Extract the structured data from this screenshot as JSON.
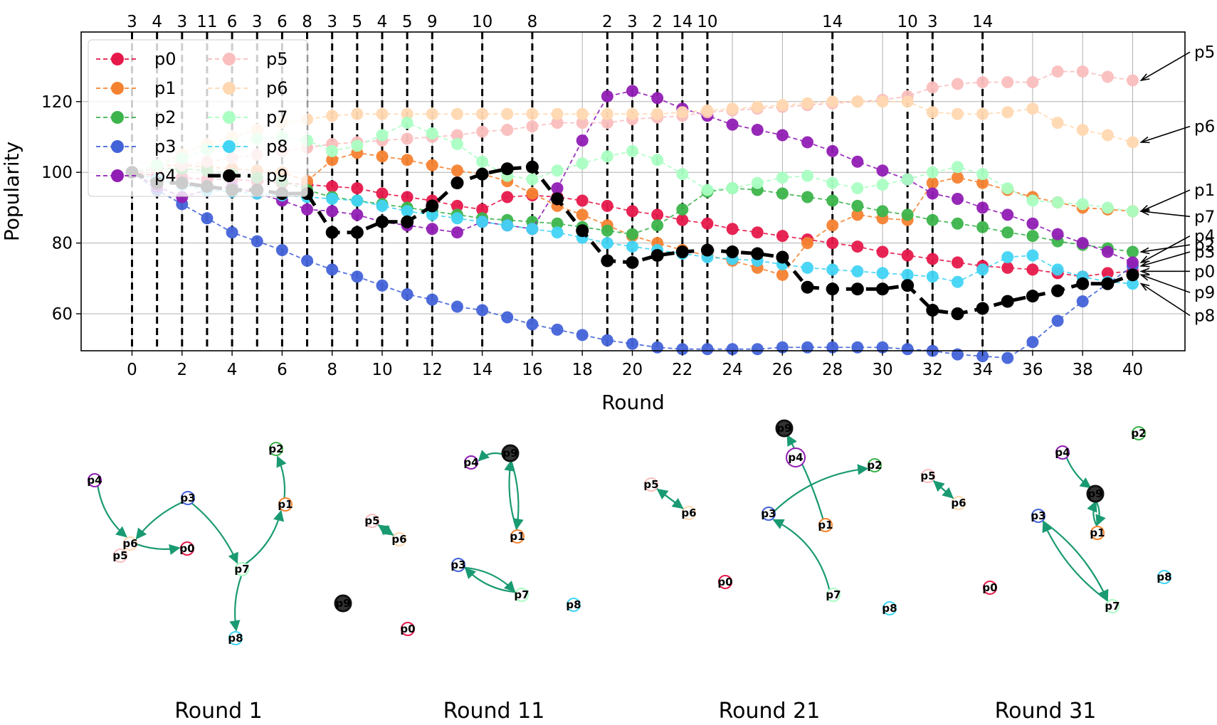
{
  "chart_data": [
    {
      "type": "line",
      "xlabel": "Round",
      "ylabel": "Popularity",
      "xlim": [
        -2,
        42
      ],
      "ylim": [
        43,
        134
      ],
      "xticks": [
        0,
        2,
        4,
        6,
        8,
        10,
        12,
        14,
        16,
        18,
        20,
        22,
        24,
        26,
        28,
        30,
        32,
        34,
        36,
        38,
        40
      ],
      "yticks": [
        60,
        80,
        100,
        120
      ],
      "grid": true,
      "legend": {
        "position": "upper-left",
        "columns": 2
      },
      "series": [
        {
          "name": "p0",
          "color": "#e6194b",
          "values": [
            100,
            99,
            98.5,
            98,
            98,
            97.5,
            97,
            96.5,
            96,
            95.5,
            94,
            93,
            92,
            90.5,
            89.5,
            93,
            93.5,
            93,
            92,
            90.5,
            89,
            88,
            86.5,
            85.5,
            84,
            83,
            82,
            81,
            80,
            79,
            77.5,
            76.5,
            75.5,
            74.5,
            73.5,
            73,
            72.5,
            71.5,
            70.5,
            71.5,
            72
          ]
        },
        {
          "name": "p1",
          "color": "#f58231",
          "values": [
            100,
            102,
            102,
            101.5,
            101,
            100.5,
            100,
            97.5,
            103.5,
            105.5,
            104.5,
            103.5,
            102,
            100.5,
            99.5,
            97.5,
            94,
            90.5,
            88,
            85,
            82,
            80,
            78,
            76.5,
            75,
            73,
            71,
            80,
            85,
            88,
            87,
            86.5,
            97,
            98.5,
            97,
            95,
            93,
            91.5,
            90,
            89.5,
            89
          ]
        },
        {
          "name": "p2",
          "color": "#3cb44b",
          "values": [
            100,
            101,
            101,
            100.5,
            99.5,
            98.5,
            97.5,
            95,
            93,
            92,
            91,
            90,
            89,
            88,
            87,
            86.5,
            86,
            85.5,
            84.5,
            83.5,
            82.5,
            85,
            89.5,
            94.5,
            95.5,
            95,
            94,
            93,
            92,
            90.5,
            89,
            88,
            86.5,
            85.5,
            84.5,
            83,
            82,
            80.5,
            79.5,
            78.5,
            77.5
          ]
        },
        {
          "name": "p3",
          "color": "#4363d8",
          "values": [
            100,
            95,
            91,
            87,
            83,
            80.5,
            78,
            75,
            72.5,
            70.5,
            68,
            65.5,
            64,
            62,
            61,
            59,
            57,
            55.5,
            54,
            52.5,
            51.5,
            50.5,
            50,
            50,
            50,
            50,
            50.5,
            50.5,
            50.5,
            50.5,
            50.5,
            50,
            49.5,
            48.5,
            48,
            47.5,
            52,
            58,
            63.5,
            68.5,
            73.5
          ]
        },
        {
          "name": "p4",
          "color": "#911eb4",
          "values": [
            100,
            96,
            93,
            95,
            96,
            94,
            92,
            89.5,
            89,
            88,
            86,
            85,
            84,
            83,
            86,
            85,
            84,
            95.5,
            109,
            121.5,
            123,
            121,
            118,
            116,
            113.5,
            112,
            110.5,
            108.5,
            106,
            103,
            100.5,
            98,
            94,
            92.5,
            90,
            88,
            85.5,
            82.5,
            80,
            77.5,
            74.5
          ]
        },
        {
          "name": "p5",
          "color": "#fabebe",
          "values": [
            100,
            101,
            102,
            103,
            104,
            105,
            106,
            107,
            108,
            108.5,
            109,
            109.5,
            110,
            110.5,
            111.5,
            112,
            113,
            114,
            114,
            114,
            115,
            115.5,
            116,
            117,
            117.5,
            118,
            118.5,
            119,
            119.5,
            120,
            120.5,
            121.5,
            124,
            125,
            125.5,
            125.5,
            125.5,
            128.5,
            128.5,
            127,
            126
          ]
        },
        {
          "name": "p6",
          "color": "#ffd8b1",
          "values": [
            100,
            102,
            105,
            108,
            110,
            112,
            114,
            115,
            116,
            116.5,
            116.5,
            116.5,
            116.5,
            116.5,
            116.5,
            116.5,
            116.5,
            116.5,
            116.5,
            116.5,
            116.5,
            116.5,
            117,
            117.5,
            118,
            118.5,
            119,
            119.5,
            120,
            120,
            120,
            120,
            117,
            116.5,
            116.5,
            117,
            118,
            114,
            112,
            110.5,
            108.5
          ]
        },
        {
          "name": "p7",
          "color": "#aaffc3",
          "values": [
            100,
            102,
            104,
            106.5,
            108,
            109.5,
            110,
            109,
            106,
            107.5,
            110.5,
            114,
            111,
            108,
            103,
            99,
            98,
            100.5,
            102.5,
            104.5,
            106,
            103.5,
            99.5,
            95,
            95.5,
            97,
            98.5,
            99,
            97,
            95.5,
            96.5,
            98,
            100,
            101.5,
            99.5,
            95.5,
            92,
            91.5,
            91,
            90,
            89
          ]
        },
        {
          "name": "p8",
          "color": "#42d4f4",
          "values": [
            100,
            98,
            96.5,
            95,
            94.5,
            94,
            93.5,
            93,
            92.5,
            92,
            90.5,
            89,
            88,
            87,
            86,
            85,
            84,
            83,
            81.5,
            80,
            79,
            78,
            77,
            76,
            75.5,
            75,
            74,
            73,
            72.5,
            72,
            71.5,
            71,
            70.5,
            69,
            72.5,
            76,
            76.5,
            72.5,
            70.5,
            69,
            68.5
          ]
        },
        {
          "name": "p9",
          "color": "#000000",
          "values": [
            100,
            97,
            97,
            96,
            95,
            95,
            94,
            94,
            83,
            83,
            86,
            86,
            90.5,
            97,
            99.5,
            101,
            101.5,
            92.5,
            83.5,
            75,
            74.5,
            76.5,
            77.5,
            78,
            77.5,
            77,
            76,
            67.5,
            67,
            67,
            67,
            68,
            61,
            60,
            61.5,
            63.5,
            65,
            66.5,
            68.5,
            68.5,
            71
          ]
        }
      ],
      "vlines": [
        {
          "x": 0,
          "label": "3"
        },
        {
          "x": 1,
          "label": "4"
        },
        {
          "x": 2,
          "label": "3"
        },
        {
          "x": 3,
          "label": "11"
        },
        {
          "x": 4,
          "label": "6"
        },
        {
          "x": 5,
          "label": "3"
        },
        {
          "x": 6,
          "label": "6"
        },
        {
          "x": 7,
          "label": "8"
        },
        {
          "x": 8,
          "label": "3"
        },
        {
          "x": 9,
          "label": "5"
        },
        {
          "x": 10,
          "label": "4"
        },
        {
          "x": 11,
          "label": "5"
        },
        {
          "x": 12,
          "label": "9"
        },
        {
          "x": 14,
          "label": "10"
        },
        {
          "x": 16,
          "label": "8"
        },
        {
          "x": 19,
          "label": "2"
        },
        {
          "x": 20,
          "label": "3"
        },
        {
          "x": 21,
          "label": "2"
        },
        {
          "x": 22,
          "label": "14"
        },
        {
          "x": 23,
          "label": "10"
        },
        {
          "x": 28,
          "label": "14"
        },
        {
          "x": 31,
          "label": "10"
        },
        {
          "x": 32,
          "label": "3"
        },
        {
          "x": 34,
          "label": "14"
        }
      ],
      "end_labels": [
        {
          "name": "p5",
          "value": 134
        },
        {
          "name": "p6",
          "value": 113
        },
        {
          "name": "p1",
          "value": 95
        },
        {
          "name": "p7",
          "value": 87.5
        },
        {
          "name": "p4",
          "value": 82
        },
        {
          "name": "p2",
          "value": 79.5
        },
        {
          "name": "p3",
          "value": 77.5
        },
        {
          "name": "p0",
          "value": 72
        },
        {
          "name": "p9",
          "value": 66
        },
        {
          "name": "p8",
          "value": 59.5
        }
      ]
    },
    {
      "type": "diagram",
      "captions": [
        "Round 1",
        "Round 11",
        "Round 21",
        "Round 31"
      ]
    }
  ]
}
